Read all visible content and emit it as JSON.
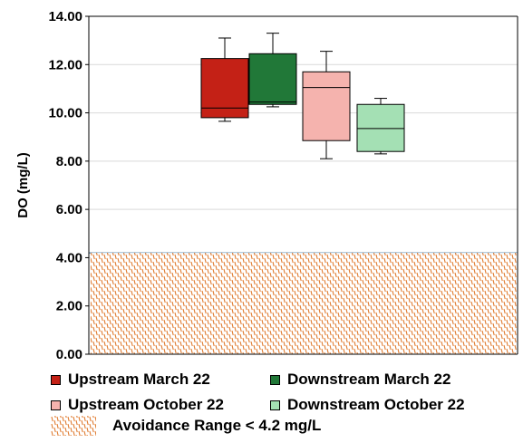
{
  "chart_data": {
    "type": "box",
    "title": "",
    "xlabel": "",
    "ylabel": "DO (mg/L)",
    "ylim": [
      0,
      14
    ],
    "yticks": [
      "0.00",
      "2.00",
      "4.00",
      "6.00",
      "8.00",
      "10.00",
      "12.00",
      "14.00"
    ],
    "grid": true,
    "legend_position": "bottom",
    "avoidance": {
      "label": "Avoidance Range < 4.2 mg/L",
      "threshold": 4.2,
      "color": "#e07a2e"
    },
    "series": [
      {
        "name": "Upstream March 22",
        "color": "#c42116",
        "min": 9.65,
        "q1": 9.8,
        "median": 10.2,
        "q3": 12.25,
        "max": 13.1
      },
      {
        "name": "Downstream March 22",
        "color": "#217838",
        "min": 10.25,
        "q1": 10.35,
        "median": 10.45,
        "q3": 12.45,
        "max": 13.3
      },
      {
        "name": "Upstream October 22",
        "color": "#f5b3ae",
        "min": 8.1,
        "q1": 8.85,
        "median": 11.05,
        "q3": 11.7,
        "max": 12.55
      },
      {
        "name": "Downstream October 22",
        "color": "#a4e0b4",
        "min": 8.3,
        "q1": 8.4,
        "median": 9.35,
        "q3": 10.35,
        "max": 10.6
      }
    ]
  }
}
